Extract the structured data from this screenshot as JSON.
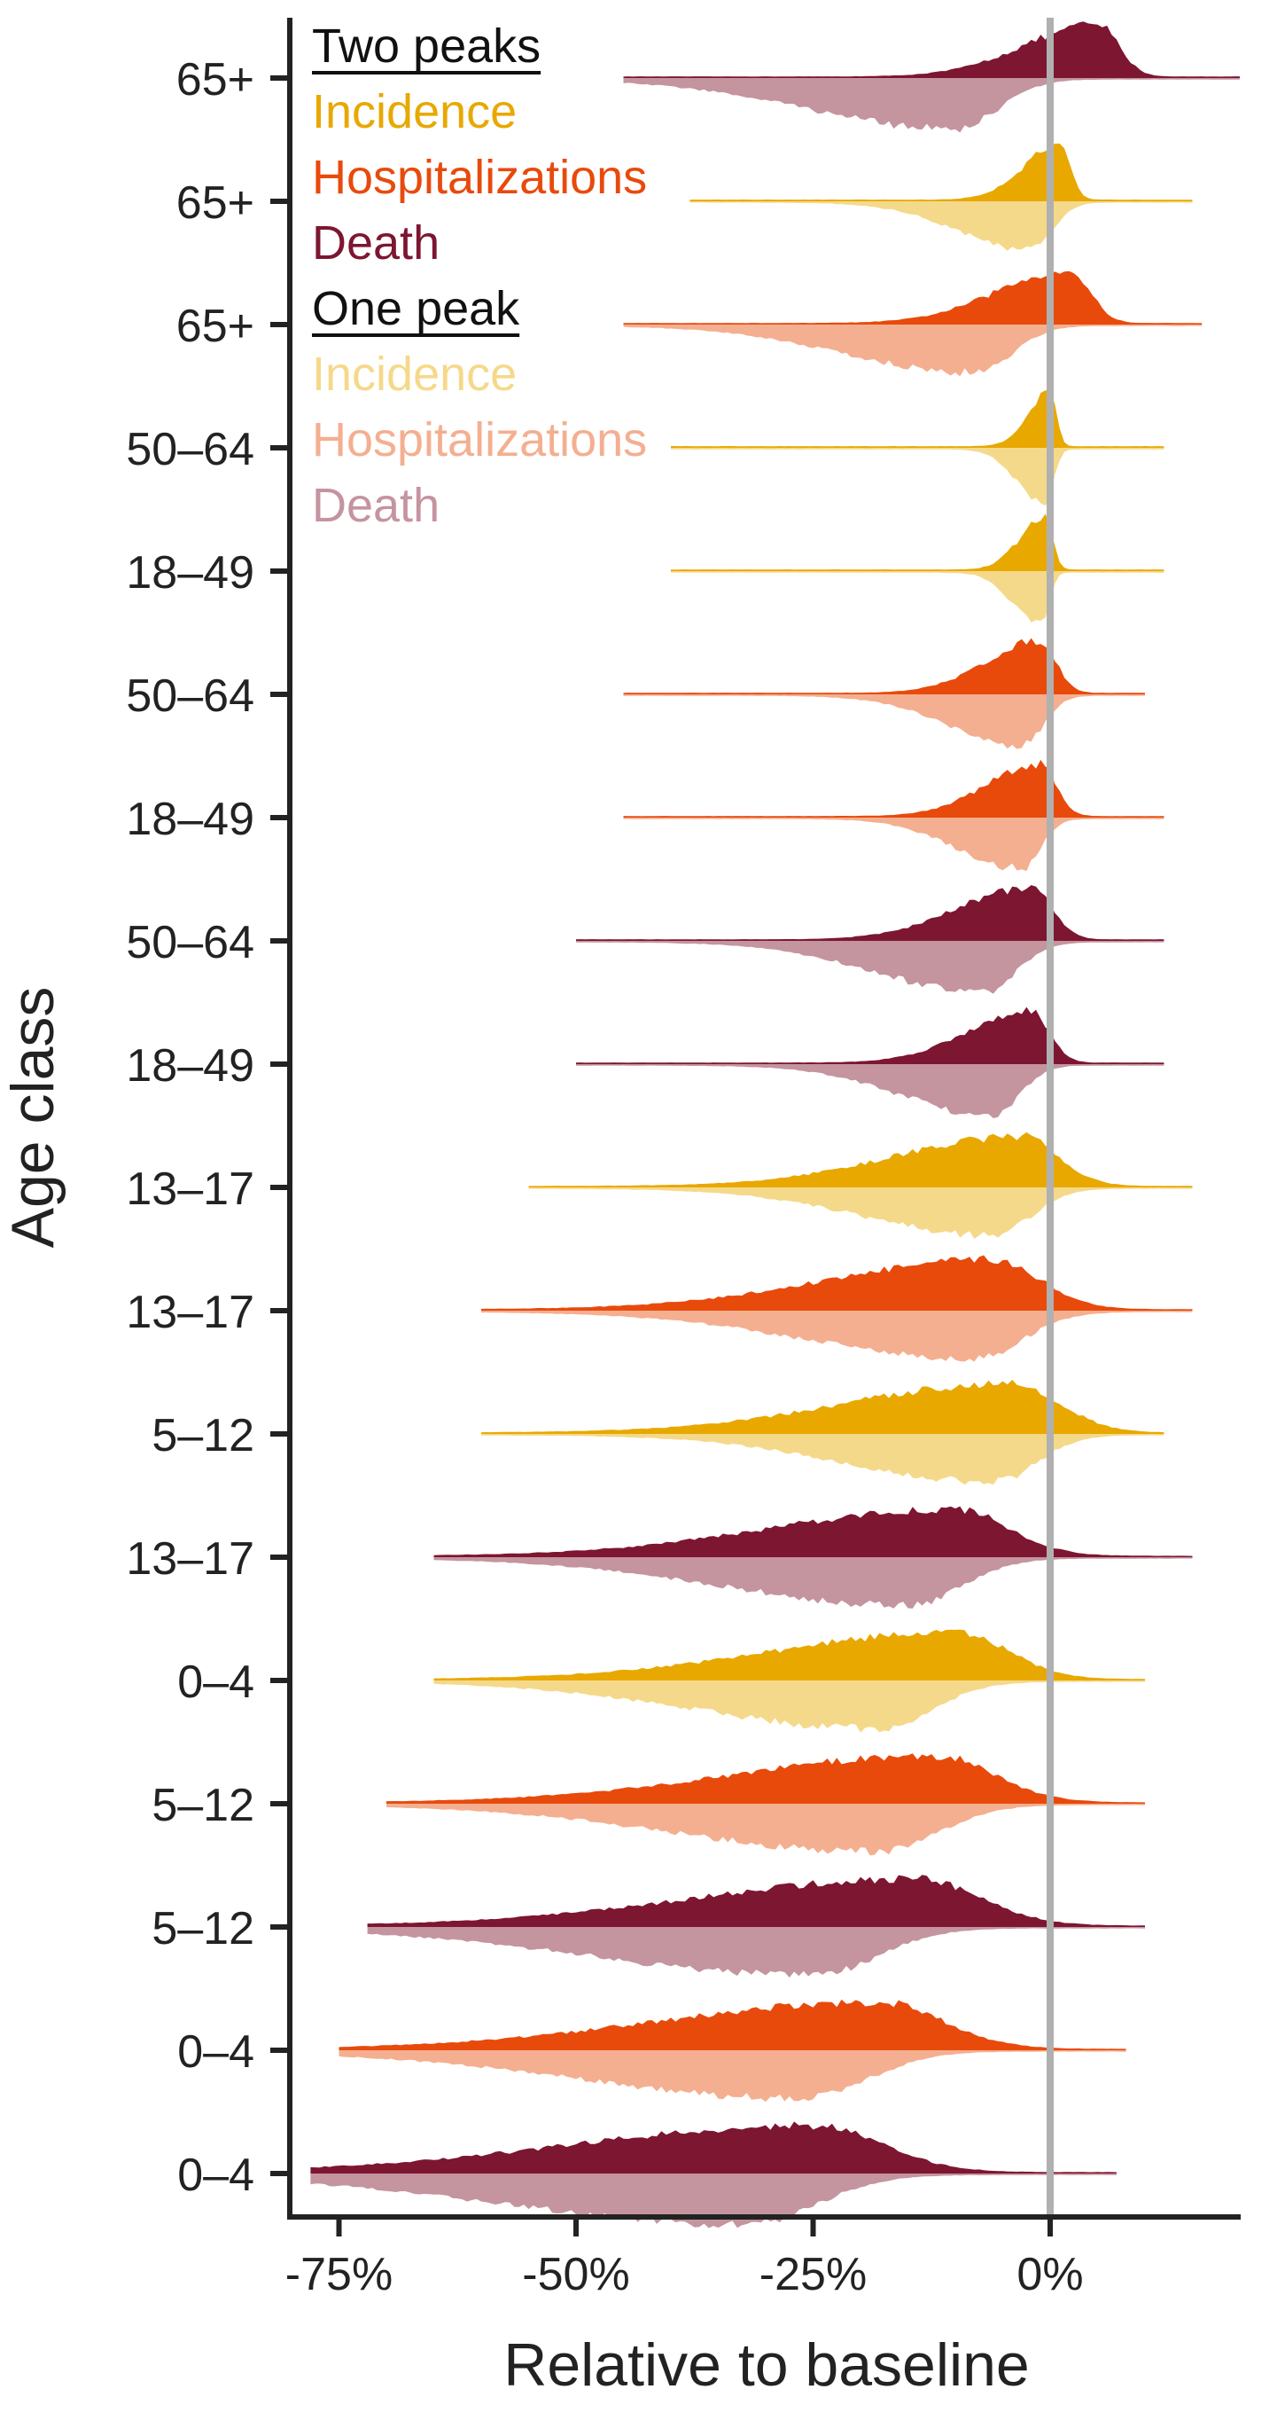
{
  "chart_data": {
    "type": "area",
    "subtype": "mirrored-density-ridgeline",
    "title": "",
    "xlabel": "Relative to baseline",
    "ylabel": "Age class",
    "xlim": [
      -80,
      20
    ],
    "x_ticks": [
      -75,
      -50,
      -25,
      0
    ],
    "x_tick_labels": [
      "-75%",
      "-50%",
      "-25%",
      "0%"
    ],
    "reference_line_x": 0,
    "grid": false,
    "legend_position": "top-left",
    "legend": {
      "groups": [
        {
          "title": "Two peaks",
          "items": [
            {
              "label": "Incidence",
              "color": "#E8A800"
            },
            {
              "label": "Hospitalizations",
              "color": "#E84A0C"
            },
            {
              "label": "Death",
              "color": "#7D1631"
            }
          ]
        },
        {
          "title": "One peak",
          "items": [
            {
              "label": "Incidence",
              "color": "#F5D98A"
            },
            {
              "label": "Hospitalizations",
              "color": "#F4AF90"
            },
            {
              "label": "Death",
              "color": "#C4949F"
            }
          ]
        }
      ]
    },
    "colors": {
      "two_peaks": {
        "Incidence": "#E8A800",
        "Hospitalizations": "#E84A0C",
        "Death": "#7D1631"
      },
      "one_peak": {
        "Incidence": "#F5D98A",
        "Hospitalizations": "#F4AF90",
        "Death": "#C4949F"
      }
    },
    "rows": [
      {
        "label": "65+",
        "outcome": "Death",
        "min": -45,
        "max": 20,
        "top_mode": 5,
        "top_sd": 4,
        "top_amp": 0.95,
        "bot_mode": -10,
        "bot_sd": 8,
        "bot_amp": 0.9
      },
      {
        "label": "65+",
        "outcome": "Incidence",
        "min": -38,
        "max": 15,
        "top_mode": 1,
        "top_sd": 2,
        "top_amp": 1.0,
        "bot_mode": -2,
        "bot_sd": 4,
        "bot_amp": 0.85
      },
      {
        "label": "65+",
        "outcome": "Hospitalizations",
        "min": -45,
        "max": 16,
        "top_mode": 2,
        "top_sd": 4,
        "top_amp": 0.95,
        "bot_mode": -8,
        "bot_sd": 7,
        "bot_amp": 0.85
      },
      {
        "label": "50–64",
        "outcome": "Incidence",
        "min": -40,
        "max": 12,
        "top_mode": 0,
        "top_sd": 1.2,
        "top_amp": 1.0,
        "bot_mode": -0.5,
        "bot_sd": 1.5,
        "bot_amp": 1.0
      },
      {
        "label": "18–49",
        "outcome": "Incidence",
        "min": -40,
        "max": 12,
        "top_mode": -0.5,
        "top_sd": 1.4,
        "top_amp": 0.95,
        "bot_mode": -1,
        "bot_sd": 1.5,
        "bot_amp": 0.95
      },
      {
        "label": "50–64",
        "outcome": "Hospitalizations",
        "min": -45,
        "max": 10,
        "top_mode": -1,
        "top_sd": 3,
        "top_amp": 0.95,
        "bot_mode": -3,
        "bot_sd": 4,
        "bot_amp": 0.9
      },
      {
        "label": "18–49",
        "outcome": "Hospitalizations",
        "min": -45,
        "max": 12,
        "top_mode": -1,
        "top_sd": 3,
        "top_amp": 0.95,
        "bot_mode": -3,
        "bot_sd": 3.5,
        "bot_amp": 0.9
      },
      {
        "label": "50–64",
        "outcome": "Death",
        "min": -50,
        "max": 12,
        "top_mode": -2,
        "top_sd": 4,
        "top_amp": 0.95,
        "bot_mode": -7,
        "bot_sd": 6,
        "bot_amp": 0.9
      },
      {
        "label": "18–49",
        "outcome": "Death",
        "min": -50,
        "max": 12,
        "top_mode": -2,
        "top_sd": 3.5,
        "top_amp": 0.95,
        "bot_mode": -6,
        "bot_sd": 5,
        "bot_amp": 0.9
      },
      {
        "label": "13–17",
        "outcome": "Incidence",
        "min": -55,
        "max": 15,
        "top_mode": -3,
        "top_sd": 7,
        "top_amp": 0.9,
        "bot_mode": -6,
        "bot_sd": 7,
        "bot_amp": 0.85
      },
      {
        "label": "13–17",
        "outcome": "Hospitalizations",
        "min": -60,
        "max": 15,
        "top_mode": -6,
        "top_sd": 9,
        "top_amp": 0.9,
        "bot_mode": -8,
        "bot_sd": 9,
        "bot_amp": 0.85
      },
      {
        "label": "5–12",
        "outcome": "Incidence",
        "min": -60,
        "max": 12,
        "top_mode": -4,
        "top_sd": 9,
        "top_amp": 0.9,
        "bot_mode": -6,
        "bot_sd": 8,
        "bot_amp": 0.85
      },
      {
        "label": "13–17",
        "outcome": "Death",
        "min": -65,
        "max": 15,
        "top_mode": -10,
        "top_sd": 10,
        "top_amp": 0.85,
        "bot_mode": -15,
        "bot_sd": 10,
        "bot_amp": 0.85
      },
      {
        "label": "0–4",
        "outcome": "Incidence",
        "min": -65,
        "max": 10,
        "top_mode": -10,
        "top_sd": 10,
        "top_amp": 0.85,
        "bot_mode": -18,
        "bot_sd": 10,
        "bot_amp": 0.85
      },
      {
        "label": "5–12",
        "outcome": "Hospitalizations",
        "min": -70,
        "max": 10,
        "top_mode": -12,
        "top_sd": 11,
        "top_amp": 0.85,
        "bot_mode": -18,
        "bot_sd": 11,
        "bot_amp": 0.85
      },
      {
        "label": "5–12",
        "outcome": "Death",
        "min": -72,
        "max": 10,
        "top_mode": -14,
        "top_sd": 12,
        "top_amp": 0.85,
        "bot_mode": -25,
        "bot_sd": 12,
        "bot_amp": 0.85
      },
      {
        "label": "0–4",
        "outcome": "Hospitalizations",
        "min": -75,
        "max": 8,
        "top_mode": -18,
        "top_sd": 12,
        "top_amp": 0.85,
        "bot_mode": -26,
        "bot_sd": 12,
        "bot_amp": 0.85
      },
      {
        "label": "0–4",
        "outcome": "Death",
        "min": -78,
        "max": 7,
        "top_mode": -25,
        "top_sd": 13,
        "top_amp": 0.85,
        "bot_mode": -32,
        "bot_sd": 13,
        "bot_amp": 0.9
      }
    ]
  }
}
